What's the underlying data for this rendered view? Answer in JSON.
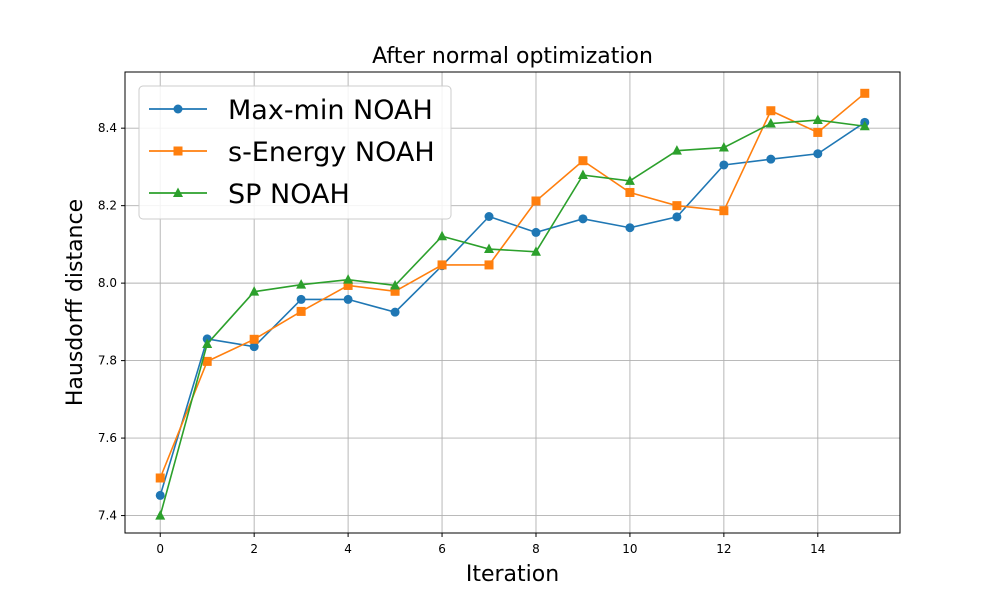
{
  "chart_data": {
    "type": "line",
    "title": "After normal optimization",
    "xlabel": "Iteration",
    "ylabel": "Hausdorff distance",
    "x": [
      0,
      1,
      2,
      3,
      4,
      5,
      6,
      7,
      8,
      9,
      10,
      11,
      12,
      13,
      14,
      15
    ],
    "xlim": [
      -0.75,
      15.75
    ],
    "ylim": [
      7.355,
      8.545
    ],
    "xticks": [
      0,
      2,
      4,
      6,
      8,
      10,
      12,
      14
    ],
    "yticks": [
      7.4,
      7.6,
      7.8,
      8.0,
      8.2,
      8.4
    ],
    "grid": true,
    "legend_position": "upper-left",
    "series": [
      {
        "name": "Max-min NOAH",
        "color": "#1f77b4",
        "marker": "circle",
        "values": [
          7.452,
          7.856,
          7.836,
          7.958,
          7.958,
          7.925,
          8.045,
          8.172,
          8.131,
          8.166,
          8.143,
          8.171,
          8.305,
          8.32,
          8.334,
          8.415
        ]
      },
      {
        "name": "s-Energy NOAH",
        "color": "#ff7f0e",
        "marker": "square",
        "values": [
          7.497,
          7.798,
          7.855,
          7.927,
          7.994,
          7.979,
          8.047,
          8.047,
          8.212,
          8.316,
          8.234,
          8.2,
          8.187,
          8.445,
          8.389,
          8.49
        ]
      },
      {
        "name": "SP NOAH",
        "color": "#2ca02c",
        "marker": "triangle",
        "values": [
          7.4,
          7.843,
          7.978,
          7.996,
          8.009,
          7.994,
          8.121,
          8.088,
          8.081,
          8.279,
          8.264,
          8.342,
          8.35,
          8.412,
          8.421,
          8.405
        ]
      }
    ]
  }
}
